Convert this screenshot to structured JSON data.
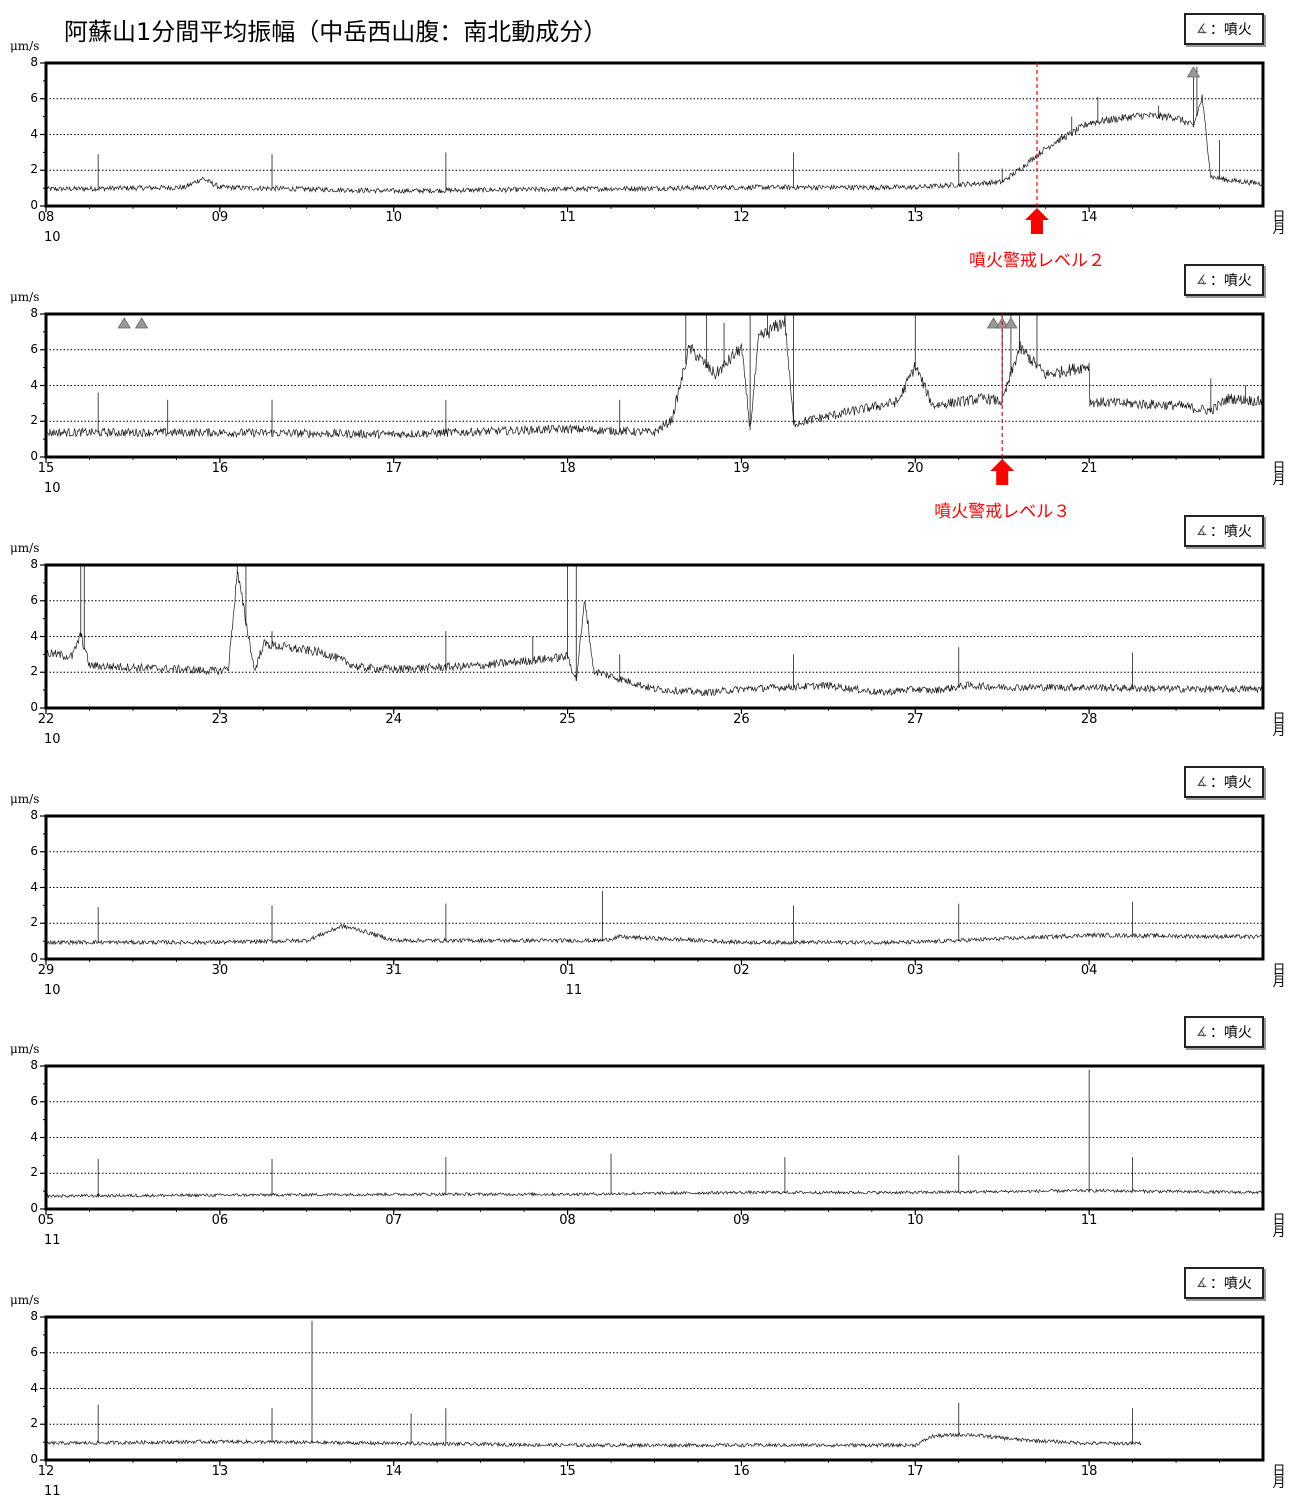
{
  "title": "阿蘇山1分間平均振幅（中岳西山腹：南北動成分）",
  "legend_text": "：噴火",
  "unit": "μm/s",
  "axis_right_label": [
    "日",
    "月"
  ],
  "colors": {
    "trace": "#1a1a1a",
    "alert": "#ff0000",
    "marker": "#999999",
    "grid": "#000000"
  },
  "chart_data": {
    "type": "line",
    "ylabel": "μm/s",
    "ylim": [
      0,
      8
    ],
    "yticks": [
      "0",
      "2",
      "4",
      "6",
      "8"
    ],
    "grid": "dotted horizontal at 2, 4, 6",
    "panels": [
      {
        "start_day": 8,
        "days": 7,
        "tick_labels": [
          "08",
          "09",
          "10",
          "11",
          "12",
          "13",
          "14"
        ],
        "month_labels": [
          {
            "day_index": 0,
            "text": "10"
          }
        ],
        "baseline": [
          [
            0,
            0.9
          ],
          [
            0.8,
            1.0
          ],
          [
            0.9,
            1.5
          ],
          [
            1.0,
            1.0
          ],
          [
            2.0,
            0.8
          ],
          [
            3.0,
            0.9
          ],
          [
            4.0,
            1.0
          ],
          [
            5.0,
            1.0
          ],
          [
            5.5,
            1.3
          ],
          [
            5.6,
            2.0
          ],
          [
            5.7,
            2.8
          ],
          [
            5.8,
            3.5
          ],
          [
            5.9,
            4.0
          ],
          [
            6.0,
            4.6
          ],
          [
            6.3,
            5.0
          ],
          [
            6.5,
            4.9
          ],
          [
            6.6,
            4.4
          ],
          [
            6.65,
            6.0
          ],
          [
            6.7,
            1.6
          ],
          [
            6.8,
            1.4
          ],
          [
            7.0,
            1.2
          ]
        ],
        "noise": 0.25,
        "spikes": [
          [
            0.3,
            2.9
          ],
          [
            1.3,
            2.9
          ],
          [
            2.3,
            3.0
          ],
          [
            4.3,
            3.0
          ],
          [
            5.25,
            3.0
          ],
          [
            5.5,
            2.1
          ],
          [
            5.9,
            5.0
          ],
          [
            6.05,
            6.1
          ],
          [
            6.2,
            5.0
          ],
          [
            6.4,
            5.6
          ],
          [
            6.6,
            7.5
          ],
          [
            6.62,
            7.8
          ],
          [
            6.75,
            3.7
          ]
        ],
        "eruptions": [
          6.6
        ],
        "alert": {
          "day": 5.7,
          "label": "噴火警戒レベル２"
        }
      },
      {
        "start_day": 15,
        "days": 7,
        "tick_labels": [
          "15",
          "16",
          "17",
          "18",
          "19",
          "20",
          "21"
        ],
        "month_labels": [
          {
            "day_index": 0,
            "text": "10"
          }
        ],
        "baseline": [
          [
            0,
            1.3
          ],
          [
            1.0,
            1.3
          ],
          [
            2.0,
            1.2
          ],
          [
            3.0,
            1.5
          ],
          [
            3.5,
            1.3
          ],
          [
            3.6,
            2.0
          ],
          [
            3.7,
            6.0
          ],
          [
            3.85,
            4.5
          ],
          [
            4.0,
            6.0
          ],
          [
            4.05,
            1.5
          ],
          [
            4.1,
            6.5
          ],
          [
            4.25,
            7.5
          ],
          [
            4.3,
            1.8
          ],
          [
            4.5,
            2.2
          ],
          [
            4.9,
            3.0
          ],
          [
            5.0,
            5.0
          ],
          [
            5.1,
            2.8
          ],
          [
            5.4,
            3.2
          ],
          [
            5.5,
            3.0
          ],
          [
            5.6,
            6.0
          ],
          [
            5.75,
            4.5
          ],
          [
            6.0,
            5.0
          ],
          [
            6.0,
            3.0
          ],
          [
            6.5,
            2.8
          ],
          [
            6.7,
            2.5
          ],
          [
            6.8,
            3.2
          ],
          [
            7.0,
            3.0
          ]
        ],
        "noise": 0.4,
        "spikes": [
          [
            0.3,
            3.6
          ],
          [
            0.7,
            3.2
          ],
          [
            1.3,
            3.2
          ],
          [
            2.3,
            3.2
          ],
          [
            3.3,
            3.2
          ],
          [
            3.68,
            8
          ],
          [
            3.8,
            8
          ],
          [
            3.9,
            7.5
          ],
          [
            4.05,
            8
          ],
          [
            4.15,
            8
          ],
          [
            4.25,
            8
          ],
          [
            4.3,
            8
          ],
          [
            5.0,
            8
          ],
          [
            5.5,
            8
          ],
          [
            5.55,
            8
          ],
          [
            5.6,
            8
          ],
          [
            5.7,
            8
          ],
          [
            6.7,
            4.4
          ],
          [
            6.9,
            4.0
          ]
        ],
        "eruptions": [
          0.45,
          0.55,
          5.45,
          5.5,
          5.55
        ],
        "alert": {
          "day": 5.5,
          "label": "噴火警戒レベル３"
        }
      },
      {
        "start_day": 22,
        "days": 7,
        "tick_labels": [
          "22",
          "23",
          "24",
          "25",
          "26",
          "27",
          "28"
        ],
        "month_labels": [
          {
            "day_index": 0,
            "text": "10"
          }
        ],
        "baseline": [
          [
            0,
            3.0
          ],
          [
            0.15,
            2.8
          ],
          [
            0.2,
            4.0
          ],
          [
            0.25,
            2.3
          ],
          [
            1.0,
            2.0
          ],
          [
            1.05,
            2.2
          ],
          [
            1.1,
            7.5
          ],
          [
            1.2,
            2.0
          ],
          [
            1.25,
            3.5
          ],
          [
            1.6,
            3.0
          ],
          [
            1.8,
            2.2
          ],
          [
            2.0,
            2.1
          ],
          [
            2.5,
            2.3
          ],
          [
            3.0,
            2.8
          ],
          [
            3.05,
            1.5
          ],
          [
            3.1,
            6.0
          ],
          [
            3.15,
            2.0
          ],
          [
            3.5,
            1.0
          ],
          [
            3.8,
            0.8
          ],
          [
            4.0,
            1.0
          ],
          [
            4.5,
            1.2
          ],
          [
            4.8,
            0.8
          ],
          [
            5.0,
            1.0
          ],
          [
            5.1,
            0.9
          ],
          [
            5.3,
            1.2
          ],
          [
            5.5,
            1.1
          ],
          [
            6.0,
            1.1
          ],
          [
            6.5,
            1.0
          ],
          [
            7.0,
            1.0
          ]
        ],
        "noise": 0.35,
        "spikes": [
          [
            0.2,
            8
          ],
          [
            0.22,
            8
          ],
          [
            1.1,
            8
          ],
          [
            1.15,
            8
          ],
          [
            1.3,
            4.3
          ],
          [
            2.3,
            4.3
          ],
          [
            2.8,
            4.0
          ],
          [
            3.0,
            8
          ],
          [
            3.05,
            8
          ],
          [
            3.3,
            3.0
          ],
          [
            4.3,
            3.0
          ],
          [
            5.25,
            3.4
          ],
          [
            6.25,
            3.1
          ]
        ],
        "eruptions": [],
        "alert": null
      },
      {
        "start_day": 29,
        "days": 7,
        "tick_labels": [
          "29",
          "30",
          "31",
          "01",
          "02",
          "03",
          "04"
        ],
        "month_labels": [
          {
            "day_index": 0,
            "text": "10"
          },
          {
            "day_index": 3,
            "text": "11"
          }
        ],
        "baseline": [
          [
            0,
            0.9
          ],
          [
            1.0,
            0.9
          ],
          [
            1.5,
            1.0
          ],
          [
            1.7,
            1.8
          ],
          [
            1.8,
            1.6
          ],
          [
            2.0,
            1.0
          ],
          [
            3.0,
            1.0
          ],
          [
            3.2,
            1.0
          ],
          [
            3.3,
            1.2
          ],
          [
            4.0,
            0.9
          ],
          [
            5.0,
            0.9
          ],
          [
            6.0,
            1.3
          ],
          [
            7.0,
            1.2
          ]
        ],
        "noise": 0.2,
        "spikes": [
          [
            0.3,
            2.9
          ],
          [
            1.3,
            3.0
          ],
          [
            2.3,
            3.1
          ],
          [
            3.2,
            3.8
          ],
          [
            4.3,
            3.0
          ],
          [
            5.25,
            3.1
          ],
          [
            6.25,
            3.2
          ]
        ],
        "eruptions": [],
        "alert": null
      },
      {
        "start_day": 5,
        "days": 7,
        "tick_labels": [
          "05",
          "06",
          "07",
          "08",
          "09",
          "10",
          "11"
        ],
        "month_labels": [
          {
            "day_index": 0,
            "text": "11"
          }
        ],
        "baseline": [
          [
            0,
            0.7
          ],
          [
            1.0,
            0.75
          ],
          [
            2.0,
            0.8
          ],
          [
            3.0,
            0.8
          ],
          [
            4.0,
            0.9
          ],
          [
            5.0,
            0.9
          ],
          [
            6.0,
            1.0
          ],
          [
            7.0,
            0.9
          ]
        ],
        "noise": 0.15,
        "spikes": [
          [
            0.3,
            2.8
          ],
          [
            1.3,
            2.8
          ],
          [
            2.3,
            2.9
          ],
          [
            3.25,
            3.1
          ],
          [
            4.25,
            2.9
          ],
          [
            5.25,
            3.0
          ],
          [
            6.0,
            7.8
          ],
          [
            6.25,
            2.9
          ]
        ],
        "eruptions": [],
        "alert": null
      },
      {
        "start_day": 12,
        "days": 7,
        "tick_labels": [
          "12",
          "13",
          "14",
          "15",
          "16",
          "17",
          "18"
        ],
        "month_labels": [
          {
            "day_index": 0,
            "text": "11"
          }
        ],
        "baseline": [
          [
            0,
            0.9
          ],
          [
            1.0,
            1.0
          ],
          [
            2.0,
            0.9
          ],
          [
            3.0,
            0.8
          ],
          [
            4.0,
            0.8
          ],
          [
            5.0,
            0.8
          ],
          [
            5.1,
            1.3
          ],
          [
            5.3,
            1.4
          ],
          [
            5.6,
            1.1
          ],
          [
            6.0,
            0.9
          ],
          [
            6.3,
            0.9
          ]
        ],
        "end_day": 6.3,
        "noise": 0.18,
        "spikes": [
          [
            0.3,
            3.1
          ],
          [
            1.3,
            2.9
          ],
          [
            1.53,
            7.8
          ],
          [
            2.1,
            2.6
          ],
          [
            2.3,
            2.9
          ],
          [
            5.25,
            3.2
          ],
          [
            6.25,
            2.9
          ]
        ],
        "eruptions": [],
        "alert": null
      }
    ]
  }
}
